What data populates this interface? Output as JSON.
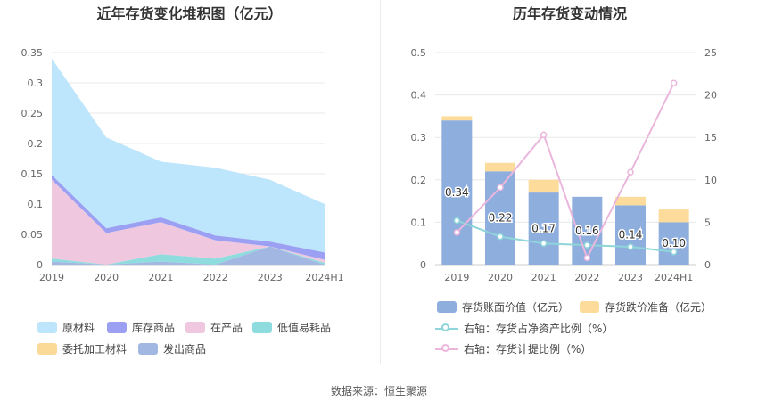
{
  "titles": {
    "left": "近年存货变化堆积图（亿元）",
    "right": "历年存货变动情况"
  },
  "source": "数据来源：恒生聚源",
  "colors": {
    "raw_material": "#bde5fb",
    "finished_goods": "#9ba0f3",
    "wip": "#efc7df",
    "consumables": "#8fdcdf",
    "consigned": "#fbd997",
    "shipped": "#a2b8e2",
    "book_value": "#8eaedd",
    "impairment": "#fddb9b",
    "ratio_net_assets": "#8ed6d9",
    "provision_ratio": "#eab6dc"
  },
  "chart_data": [
    {
      "type": "area",
      "stacked": true,
      "title": "近年存货变化堆积图（亿元）",
      "categories": [
        "2019",
        "2020",
        "2021",
        "2022",
        "2023",
        "2024H1"
      ],
      "ylim": [
        0,
        0.35
      ],
      "yticks": [
        "0",
        "0.05",
        "0.1",
        "0.15",
        "0.2",
        "0.25",
        "0.3",
        "0.35"
      ],
      "series": [
        {
          "key": "shipped",
          "name": "发出商品",
          "values": [
            0.005,
            0.0,
            0.005,
            0.0,
            0.03,
            0.0
          ]
        },
        {
          "key": "consigned",
          "name": "委托加工材料",
          "values": [
            0.0,
            0.0,
            0.0,
            0.0,
            0.0,
            0.0
          ]
        },
        {
          "key": "consumables",
          "name": "低值易耗品",
          "values": [
            0.005,
            0.0,
            0.012,
            0.01,
            0.0,
            0.003
          ]
        },
        {
          "key": "wip",
          "name": "在产品",
          "values": [
            0.13,
            0.052,
            0.053,
            0.03,
            0.0,
            0.005
          ]
        },
        {
          "key": "finished_goods",
          "name": "库存商品",
          "values": [
            0.008,
            0.008,
            0.008,
            0.008,
            0.008,
            0.012
          ]
        },
        {
          "key": "raw_material",
          "name": "原材料",
          "values": [
            0.192,
            0.15,
            0.092,
            0.112,
            0.102,
            0.08
          ]
        }
      ],
      "legend": [
        {
          "key": "raw_material",
          "label": "原材料"
        },
        {
          "key": "finished_goods",
          "label": "库存商品"
        },
        {
          "key": "wip",
          "label": "在产品"
        },
        {
          "key": "consumables",
          "label": "低值易耗品"
        },
        {
          "key": "consigned",
          "label": "委托加工材料"
        },
        {
          "key": "shipped",
          "label": "发出商品"
        }
      ]
    },
    {
      "type": "bar+line",
      "title": "历年存货变动情况",
      "categories": [
        "2019",
        "2020",
        "2021",
        "2022",
        "2023",
        "2024H1"
      ],
      "left_axis": {
        "ylim": [
          0,
          0.5
        ],
        "ticks": [
          "0",
          "0.1",
          "0.2",
          "0.3",
          "0.4",
          "0.5"
        ]
      },
      "right_axis": {
        "ylim": [
          0,
          25
        ],
        "ticks": [
          "0",
          "5",
          "10",
          "15",
          "20",
          "25"
        ]
      },
      "bars": {
        "book_value": {
          "name": "存货账面价值（亿元）",
          "values": [
            0.34,
            0.22,
            0.17,
            0.16,
            0.14,
            0.1
          ],
          "labels": [
            "0.34",
            "0.22",
            "0.17",
            "0.16",
            "0.14",
            "0.10"
          ]
        },
        "impairment": {
          "name": "存货跌价准备（亿元）",
          "values": [
            0.01,
            0.02,
            0.03,
            0.0,
            0.02,
            0.03
          ]
        }
      },
      "lines": [
        {
          "key": "ratio_net_assets",
          "name": "右轴：存货占净资产比例（%）",
          "values": [
            5.2,
            3.3,
            2.5,
            2.3,
            2.1,
            1.5
          ]
        },
        {
          "key": "provision_ratio",
          "name": "右轴：存货计提比例（%）",
          "values": [
            3.8,
            9.1,
            15.3,
            0.8,
            10.9,
            21.4
          ]
        }
      ]
    }
  ]
}
